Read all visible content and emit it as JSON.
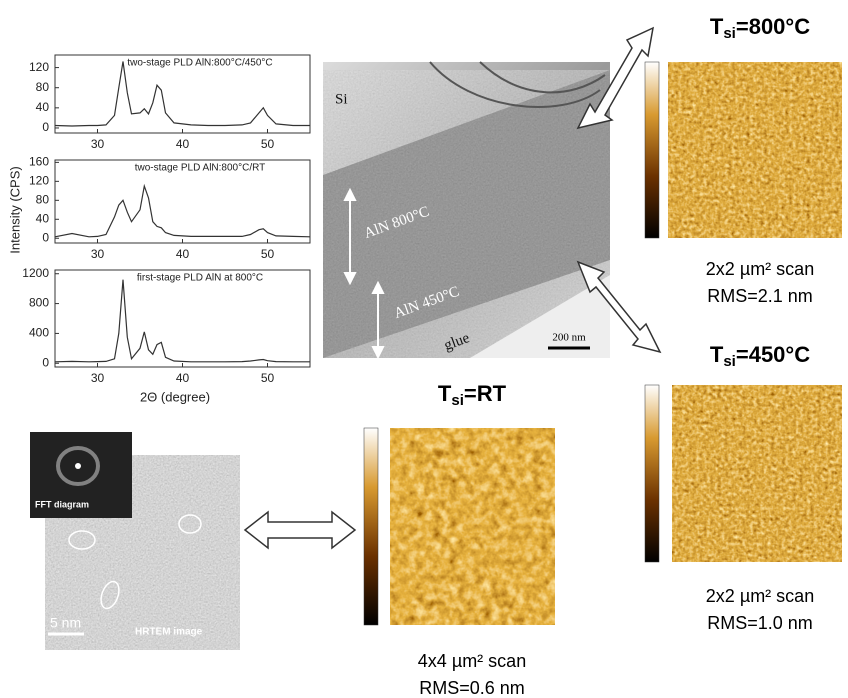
{
  "chart_data": [
    {
      "type": "line",
      "title": "two-stage PLD AlN:800°C/450°C",
      "x": [
        25,
        27,
        29,
        30,
        31,
        32,
        32.5,
        33,
        33.5,
        34,
        35,
        35.5,
        36,
        36.5,
        37,
        37.5,
        38,
        39,
        41,
        43,
        45,
        47,
        48,
        49,
        49.5,
        50,
        51,
        53,
        55
      ],
      "series": [
        {
          "color": "#333333",
          "values": [
            5,
            4,
            5,
            5,
            6,
            25,
            80,
            132,
            70,
            28,
            30,
            38,
            28,
            50,
            85,
            75,
            30,
            10,
            6,
            5,
            5,
            6,
            10,
            30,
            40,
            25,
            8,
            5,
            5
          ]
        }
      ],
      "xlim": [
        25,
        55
      ],
      "xticks": [
        30,
        40,
        50
      ],
      "ylim": [
        -10,
        145
      ],
      "yticks": [
        0,
        40,
        80,
        120
      ]
    },
    {
      "type": "line",
      "title": "two-stage PLD AlN:800°C/RT",
      "x": [
        25,
        27,
        29,
        30,
        31,
        32,
        32.5,
        33,
        33.5,
        34,
        35,
        35.5,
        36,
        36.5,
        37,
        37.5,
        38,
        39,
        41,
        43,
        45,
        47,
        48,
        49,
        49.5,
        50,
        51,
        53,
        55
      ],
      "series": [
        {
          "color": "#333333",
          "values": [
            3,
            10,
            3,
            4,
            8,
            45,
            70,
            80,
            55,
            35,
            60,
            110,
            85,
            35,
            25,
            22,
            12,
            6,
            4,
            4,
            4,
            4,
            8,
            18,
            20,
            12,
            5,
            4,
            3
          ]
        }
      ],
      "xlim": [
        25,
        55
      ],
      "xticks": [
        30,
        40,
        50
      ],
      "ylim": [
        -10,
        165
      ],
      "yticks": [
        0,
        40,
        80,
        120,
        160
      ]
    },
    {
      "type": "line",
      "title": "first-stage PLD AlN at 800°C",
      "x": [
        25,
        27,
        29,
        30,
        31,
        32,
        32.5,
        33,
        33.5,
        34,
        35,
        35.5,
        36,
        36.5,
        37,
        37.5,
        38,
        39,
        41,
        43,
        45,
        47,
        48,
        49,
        49.5,
        50,
        51,
        53,
        55
      ],
      "series": [
        {
          "color": "#333333",
          "values": [
            20,
            25,
            20,
            22,
            25,
            60,
            400,
            1120,
            350,
            60,
            200,
            420,
            180,
            120,
            250,
            280,
            80,
            30,
            20,
            20,
            20,
            22,
            30,
            45,
            50,
            35,
            22,
            20,
            20
          ]
        }
      ],
      "xlim": [
        25,
        55
      ],
      "xticks": [
        30,
        40,
        50
      ],
      "ylim": [
        -50,
        1250
      ],
      "yticks": [
        0,
        400,
        800,
        1200
      ]
    }
  ],
  "xrd_axes": {
    "y_label": "Intensity (CPS)",
    "x_label": "2Θ (degree)"
  },
  "tem": {
    "si": "Si",
    "layer1": "AlN 800°C",
    "layer2": "AlN 450°C",
    "glue": "glue",
    "scale": "200 nm"
  },
  "hrtem": {
    "fft": "FFT diagram",
    "scale": "5 nm",
    "label": "HRTEM image"
  },
  "afm": [
    {
      "t": "T",
      "sub": "si",
      "rest": "=800°C",
      "scan": "2x2 µm² scan",
      "rms": "RMS=2.1 nm"
    },
    {
      "t": "T",
      "sub": "si",
      "rest": "=450°C",
      "scan": "2x2 µm² scan",
      "rms": "RMS=1.0 nm"
    },
    {
      "t": "T",
      "sub": "si",
      "rest": "=RT",
      "scan": "4x4 µm² scan",
      "rms": "RMS=0.6 nm"
    }
  ]
}
